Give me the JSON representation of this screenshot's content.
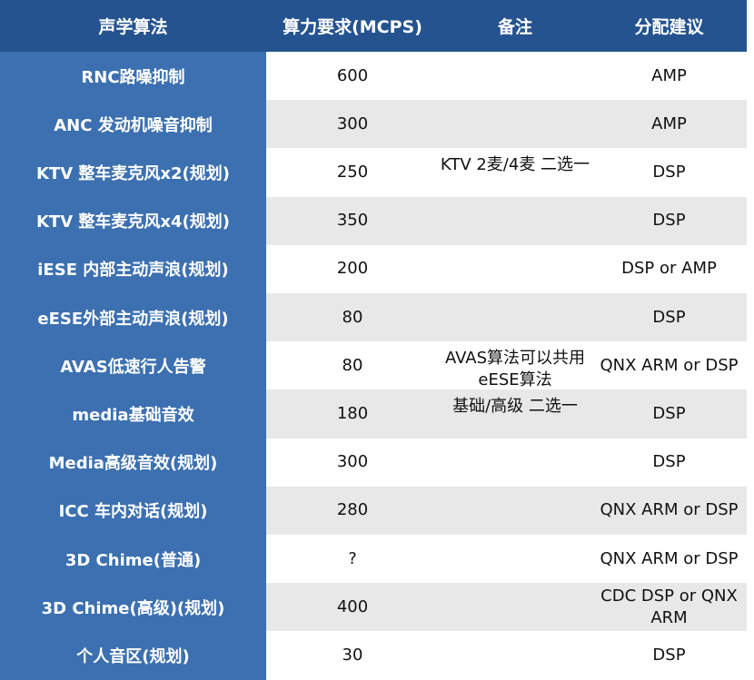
{
  "headers": [
    "声学算法",
    "算力要求(MCPS)",
    "备注",
    "分配建议"
  ],
  "rows": [
    {
      "algo": "RNC路噪抑制",
      "mcps": "600",
      "note": "",
      "alloc": "AMP"
    },
    {
      "algo": "ANC 发动机噪音抑制",
      "mcps": "300",
      "note": "",
      "alloc": "AMP"
    },
    {
      "algo": "KTV 整车麦克风x2(规划)",
      "mcps": "250",
      "note": "KTV 2麦/4麦 二选一",
      "alloc": "DSP"
    },
    {
      "algo": "KTV 整车麦克风x4(规划)",
      "mcps": "350",
      "note": "",
      "alloc": "DSP"
    },
    {
      "algo": "iESE 内部主动声浪(规划)",
      "mcps": "200",
      "note": "",
      "alloc": "DSP or AMP"
    },
    {
      "algo": "eESE外部主动声浪(规划)",
      "mcps": "80",
      "note": "",
      "alloc": "DSP"
    },
    {
      "algo": "AVAS低速行人告警",
      "mcps": "80",
      "note": "AVAS算法可以共用eESE算法",
      "alloc": "QNX ARM or DSP"
    },
    {
      "algo": "media基础音效",
      "mcps": "180",
      "note": "基础/高级 二选一",
      "alloc": "DSP"
    },
    {
      "algo": "Media高级音效(规划)",
      "mcps": "300",
      "note": "",
      "alloc": "DSP"
    },
    {
      "algo": "ICC 车内对话(规划)",
      "mcps": "280",
      "note": "",
      "alloc": "QNX ARM or DSP"
    },
    {
      "algo": "3D Chime(普通)",
      "mcps": "?",
      "note": "",
      "alloc": "QNX ARM or DSP"
    },
    {
      "algo": "3D Chime(高级)(规划)",
      "mcps": "400",
      "note": "",
      "alloc": "CDC DSP or QNX ARM"
    },
    {
      "algo": "个人音区(规划)",
      "mcps": "30",
      "note": "",
      "alloc": "DSP"
    }
  ],
  "colors": {
    "header_bg": "#24538f",
    "first_col_bg": "#3c70b0",
    "alt_row_bg": "#e8e8e8"
  }
}
